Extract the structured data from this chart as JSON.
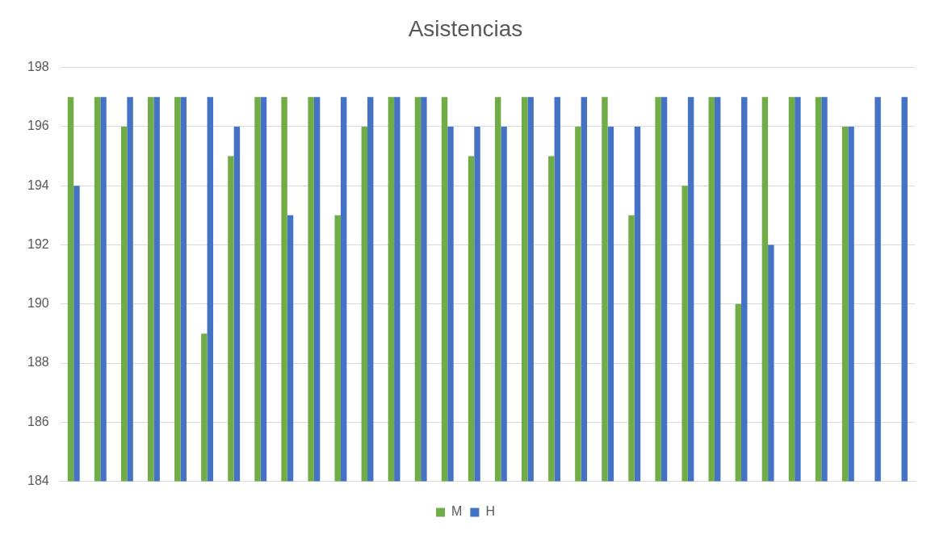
{
  "chart_data": {
    "type": "bar",
    "title": "Asistencias",
    "categories": [
      null,
      null,
      null,
      null,
      null,
      null,
      null,
      null,
      null,
      null,
      null,
      null,
      null,
      null,
      null,
      null,
      null,
      null,
      null,
      null,
      null,
      null,
      null,
      null,
      null,
      null,
      null,
      null,
      null,
      null,
      null,
      null
    ],
    "series": [
      {
        "name": "M",
        "color": "#70ad47",
        "values": [
          197,
          197,
          196,
          197,
          197,
          189,
          195,
          197,
          197,
          197,
          193,
          196,
          197,
          197,
          197,
          195,
          197,
          197,
          195,
          196,
          197,
          193,
          197,
          194,
          197,
          190,
          197,
          197,
          197,
          196,
          null,
          null
        ]
      },
      {
        "name": "H",
        "color": "#4472c4",
        "values": [
          194,
          197,
          197,
          197,
          197,
          197,
          196,
          197,
          193,
          197,
          197,
          197,
          197,
          197,
          196,
          196,
          196,
          197,
          197,
          197,
          196,
          196,
          197,
          197,
          197,
          197,
          192,
          197,
          197,
          196,
          197,
          197
        ]
      }
    ],
    "ylim": [
      184,
      198
    ],
    "yticks": [
      184,
      186,
      188,
      190,
      192,
      194,
      196,
      198
    ],
    "grid": "y",
    "legend": "bottom"
  }
}
